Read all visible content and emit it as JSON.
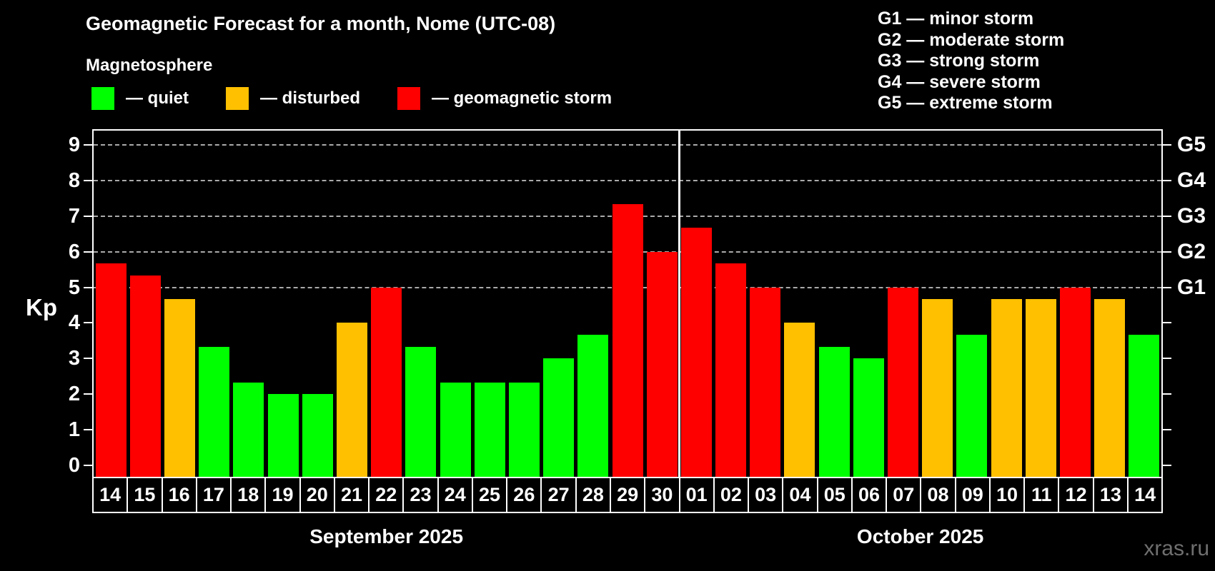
{
  "title": "Geomagnetic Forecast for a month, Nome (UTC-08)",
  "subtitle": "Magnetosphere",
  "legend": {
    "items": [
      {
        "key": "quiet",
        "label": "— quiet",
        "color": "#00ff00"
      },
      {
        "key": "disturbed",
        "label": "— disturbed",
        "color": "#ffc000"
      },
      {
        "key": "storm",
        "label": "— geomagnetic storm",
        "color": "#ff0000"
      }
    ]
  },
  "g_scale": [
    "G1 — minor storm",
    "G2 — moderate storm",
    "G3 — strong storm",
    "G4 — severe storm",
    "G5 — extreme storm"
  ],
  "watermark": "xras.ru",
  "chart_data": {
    "type": "bar",
    "title": "Geomagnetic Forecast for a month, Nome (UTC-08)",
    "ylabel": "Kp",
    "ylim": [
      0,
      9
    ],
    "grid": "dashed horizontal at Kp 5-9",
    "gridline_levels": [
      5,
      6,
      7,
      8,
      9
    ],
    "y_ticks": [
      0,
      1,
      2,
      3,
      4,
      5,
      6,
      7,
      8,
      9
    ],
    "right_axis_labels": [
      {
        "kp": 5,
        "label": "G1"
      },
      {
        "kp": 6,
        "label": "G2"
      },
      {
        "kp": 7,
        "label": "G3"
      },
      {
        "kp": 8,
        "label": "G4"
      },
      {
        "kp": 9,
        "label": "G5"
      }
    ],
    "status_colors": {
      "quiet": "#00ff00",
      "disturbed": "#ffc000",
      "storm": "#ff0000"
    },
    "months": [
      {
        "label": "September 2025",
        "bars": 17
      },
      {
        "label": "October 2025",
        "bars": 14
      }
    ],
    "bars": [
      {
        "date": "14",
        "month": "September 2025",
        "kp": 5.67,
        "status": "storm"
      },
      {
        "date": "15",
        "month": "September 2025",
        "kp": 5.33,
        "status": "storm"
      },
      {
        "date": "16",
        "month": "September 2025",
        "kp": 4.67,
        "status": "disturbed"
      },
      {
        "date": "17",
        "month": "September 2025",
        "kp": 3.33,
        "status": "quiet"
      },
      {
        "date": "18",
        "month": "September 2025",
        "kp": 2.33,
        "status": "quiet"
      },
      {
        "date": "19",
        "month": "September 2025",
        "kp": 2.0,
        "status": "quiet"
      },
      {
        "date": "20",
        "month": "September 2025",
        "kp": 2.0,
        "status": "quiet"
      },
      {
        "date": "21",
        "month": "September 2025",
        "kp": 4.0,
        "status": "disturbed"
      },
      {
        "date": "22",
        "month": "September 2025",
        "kp": 5.0,
        "status": "storm"
      },
      {
        "date": "23",
        "month": "September 2025",
        "kp": 3.33,
        "status": "quiet"
      },
      {
        "date": "24",
        "month": "September 2025",
        "kp": 2.33,
        "status": "quiet"
      },
      {
        "date": "25",
        "month": "September 2025",
        "kp": 2.33,
        "status": "quiet"
      },
      {
        "date": "26",
        "month": "September 2025",
        "kp": 2.33,
        "status": "quiet"
      },
      {
        "date": "27",
        "month": "September 2025",
        "kp": 3.0,
        "status": "quiet"
      },
      {
        "date": "28",
        "month": "September 2025",
        "kp": 3.67,
        "status": "quiet"
      },
      {
        "date": "29",
        "month": "September 2025",
        "kp": 7.33,
        "status": "storm"
      },
      {
        "date": "30",
        "month": "September 2025",
        "kp": 6.0,
        "status": "storm"
      },
      {
        "date": "01",
        "month": "October 2025",
        "kp": 6.67,
        "status": "storm"
      },
      {
        "date": "02",
        "month": "October 2025",
        "kp": 5.67,
        "status": "storm"
      },
      {
        "date": "03",
        "month": "October 2025",
        "kp": 5.0,
        "status": "storm"
      },
      {
        "date": "04",
        "month": "October 2025",
        "kp": 4.0,
        "status": "disturbed"
      },
      {
        "date": "05",
        "month": "October 2025",
        "kp": 3.33,
        "status": "quiet"
      },
      {
        "date": "06",
        "month": "October 2025",
        "kp": 3.0,
        "status": "quiet"
      },
      {
        "date": "07",
        "month": "October 2025",
        "kp": 5.0,
        "status": "storm"
      },
      {
        "date": "08",
        "month": "October 2025",
        "kp": 4.67,
        "status": "disturbed"
      },
      {
        "date": "09",
        "month": "October 2025",
        "kp": 3.67,
        "status": "quiet"
      },
      {
        "date": "10",
        "month": "October 2025",
        "kp": 4.67,
        "status": "disturbed"
      },
      {
        "date": "11",
        "month": "October 2025",
        "kp": 4.67,
        "status": "disturbed"
      },
      {
        "date": "12",
        "month": "October 2025",
        "kp": 5.0,
        "status": "storm"
      },
      {
        "date": "13",
        "month": "October 2025",
        "kp": 4.67,
        "status": "disturbed"
      },
      {
        "date": "14",
        "month": "October 2025",
        "kp": 3.67,
        "status": "quiet"
      }
    ]
  }
}
